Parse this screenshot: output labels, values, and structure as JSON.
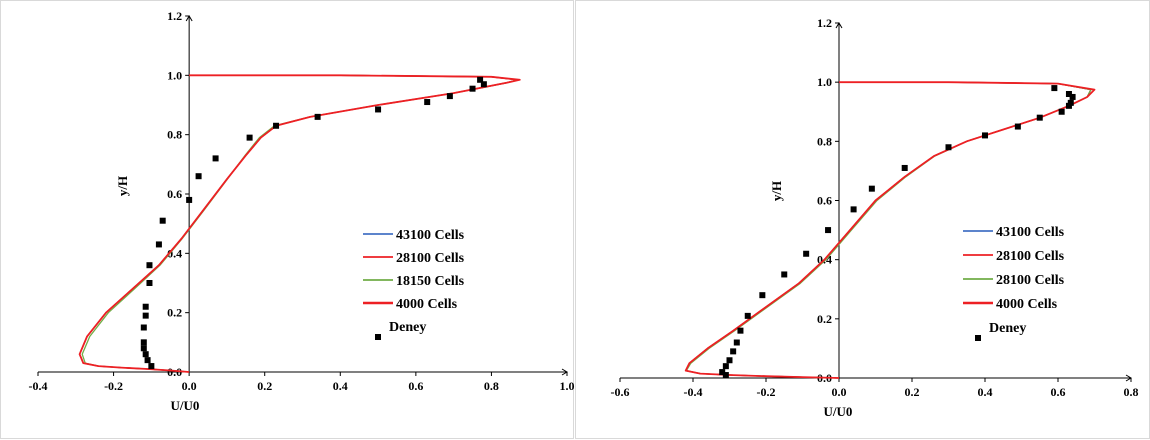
{
  "chart_data": [
    {
      "type": "line",
      "title": "",
      "xlabel": "U/U0",
      "ylabel": "y/H",
      "xlim": [
        -0.4,
        1.0
      ],
      "ylim": [
        0.0,
        1.2
      ],
      "xticks": [
        "-0.4",
        "-0.2",
        "0.0",
        "0.2",
        "0.4",
        "0.6",
        "0.8",
        "1.0"
      ],
      "yticks": [
        "0.0",
        "0.2",
        "0.4",
        "0.6",
        "0.8",
        "1.0",
        "1.2"
      ],
      "grid": false,
      "legend_position": "right",
      "series": [
        {
          "name": "43100 Cells",
          "color": "#4472c4",
          "style": "line",
          "x": [
            0.0,
            -0.05,
            -0.11,
            -0.18,
            -0.24,
            -0.28,
            -0.29,
            -0.27,
            -0.22,
            -0.15,
            -0.08,
            -0.02,
            0.04,
            0.1,
            0.15,
            0.19,
            0.23,
            0.32,
            0.5,
            0.7,
            0.84,
            0.87,
            0.8,
            0.4,
            0.0
          ],
          "y": [
            0.0,
            0.005,
            0.01,
            0.015,
            0.02,
            0.03,
            0.06,
            0.12,
            0.2,
            0.28,
            0.36,
            0.45,
            0.55,
            0.65,
            0.73,
            0.79,
            0.83,
            0.86,
            0.9,
            0.94,
            0.975,
            0.985,
            0.995,
            1.0,
            1.0
          ]
        },
        {
          "name": "28100 Cells",
          "color": "#ed2024",
          "style": "line",
          "x": [
            0.0,
            -0.05,
            -0.11,
            -0.18,
            -0.24,
            -0.28,
            -0.29,
            -0.27,
            -0.22,
            -0.15,
            -0.08,
            -0.02,
            0.04,
            0.1,
            0.15,
            0.19,
            0.23,
            0.32,
            0.5,
            0.7,
            0.84,
            0.87,
            0.8,
            0.4,
            0.0
          ],
          "y": [
            0.0,
            0.005,
            0.01,
            0.015,
            0.02,
            0.03,
            0.06,
            0.12,
            0.2,
            0.28,
            0.36,
            0.45,
            0.55,
            0.65,
            0.73,
            0.79,
            0.83,
            0.86,
            0.9,
            0.94,
            0.975,
            0.985,
            0.995,
            1.0,
            1.0
          ]
        },
        {
          "name": "18150 Cells",
          "color": "#70ad47",
          "style": "line",
          "x": [
            0.0,
            -0.05,
            -0.11,
            -0.18,
            -0.24,
            -0.275,
            -0.283,
            -0.263,
            -0.214,
            -0.145,
            -0.077,
            -0.018,
            0.042,
            0.101,
            0.148,
            0.186,
            0.226,
            0.32,
            0.5,
            0.7,
            0.84,
            0.87,
            0.8,
            0.4,
            0.0
          ],
          "y": [
            0.0,
            0.005,
            0.01,
            0.015,
            0.02,
            0.03,
            0.06,
            0.12,
            0.2,
            0.28,
            0.36,
            0.45,
            0.55,
            0.65,
            0.73,
            0.79,
            0.83,
            0.86,
            0.9,
            0.94,
            0.975,
            0.985,
            0.995,
            1.0,
            1.0
          ]
        },
        {
          "name": "4000 Cells",
          "color": "#ed2024",
          "style": "line",
          "x": [
            0.0,
            -0.05,
            -0.11,
            -0.18,
            -0.24,
            -0.28,
            -0.29,
            -0.27,
            -0.22,
            -0.15,
            -0.08,
            -0.02,
            0.04,
            0.1,
            0.15,
            0.19,
            0.23,
            0.32,
            0.5,
            0.7,
            0.84,
            0.875,
            0.8,
            0.4,
            0.0
          ],
          "y": [
            0.0,
            0.005,
            0.01,
            0.015,
            0.02,
            0.03,
            0.06,
            0.12,
            0.2,
            0.28,
            0.36,
            0.45,
            0.55,
            0.65,
            0.73,
            0.79,
            0.83,
            0.86,
            0.9,
            0.94,
            0.975,
            0.985,
            0.995,
            1.0,
            1.0
          ]
        },
        {
          "name": "Deney",
          "color": "#000000",
          "style": "marker",
          "x": [
            -0.1,
            -0.11,
            -0.115,
            -0.12,
            -0.12,
            -0.12,
            -0.115,
            -0.115,
            -0.105,
            -0.105,
            -0.08,
            -0.07,
            0.0,
            0.025,
            0.07,
            0.16,
            0.23,
            0.34,
            0.5,
            0.63,
            0.69,
            0.75,
            0.77,
            0.78
          ],
          "y": [
            0.02,
            0.04,
            0.06,
            0.08,
            0.1,
            0.15,
            0.19,
            0.22,
            0.3,
            0.36,
            0.43,
            0.51,
            0.58,
            0.66,
            0.72,
            0.79,
            0.83,
            0.86,
            0.885,
            0.91,
            0.93,
            0.955,
            0.985,
            0.97
          ]
        }
      ]
    },
    {
      "type": "line",
      "title": "",
      "xlabel": "U/U0",
      "ylabel": "y/H",
      "xlim": [
        -0.6,
        0.8
      ],
      "ylim": [
        0.0,
        1.2
      ],
      "xticks": [
        "-0.6",
        "-0.4",
        "-0.2",
        "0.0",
        "0.2",
        "0.4",
        "0.6",
        "0.8"
      ],
      "yticks": [
        "0.0",
        "0.2",
        "0.4",
        "0.6",
        "0.8",
        "1.0",
        "1.2"
      ],
      "grid": false,
      "legend_position": "right",
      "series": [
        {
          "name": "43100 Cells",
          "color": "#4472c4",
          "style": "line",
          "x": [
            0.0,
            -0.1,
            -0.2,
            -0.3,
            -0.38,
            -0.42,
            -0.41,
            -0.36,
            -0.29,
            -0.2,
            -0.11,
            -0.04,
            0.03,
            0.1,
            0.18,
            0.26,
            0.35,
            0.45,
            0.55,
            0.63,
            0.68,
            0.69,
            0.6,
            0.3,
            0.0
          ],
          "y": [
            0.0,
            0.003,
            0.006,
            0.01,
            0.015,
            0.025,
            0.05,
            0.1,
            0.16,
            0.24,
            0.32,
            0.4,
            0.5,
            0.6,
            0.68,
            0.75,
            0.8,
            0.84,
            0.88,
            0.92,
            0.95,
            0.975,
            0.995,
            1.0,
            1.0
          ]
        },
        {
          "name": "28100 Cells",
          "color": "#ed2024",
          "style": "line",
          "x": [
            0.0,
            -0.1,
            -0.2,
            -0.3,
            -0.38,
            -0.42,
            -0.41,
            -0.36,
            -0.29,
            -0.2,
            -0.11,
            -0.04,
            0.03,
            0.1,
            0.18,
            0.26,
            0.35,
            0.45,
            0.55,
            0.63,
            0.68,
            0.69,
            0.6,
            0.3,
            0.0
          ],
          "y": [
            0.0,
            0.003,
            0.006,
            0.01,
            0.015,
            0.025,
            0.05,
            0.1,
            0.16,
            0.24,
            0.32,
            0.4,
            0.5,
            0.6,
            0.68,
            0.75,
            0.8,
            0.84,
            0.88,
            0.92,
            0.95,
            0.975,
            0.995,
            1.0,
            1.0
          ]
        },
        {
          "name": "28100 Cells",
          "color": "#70ad47",
          "style": "line",
          "x": [
            0.0,
            -0.1,
            -0.2,
            -0.3,
            -0.38,
            -0.418,
            -0.406,
            -0.356,
            -0.286,
            -0.196,
            -0.106,
            -0.036,
            0.034,
            0.104,
            0.183,
            0.262,
            0.35,
            0.45,
            0.55,
            0.63,
            0.68,
            0.69,
            0.6,
            0.3,
            0.0
          ],
          "y": [
            0.0,
            0.003,
            0.006,
            0.01,
            0.015,
            0.025,
            0.05,
            0.1,
            0.16,
            0.24,
            0.32,
            0.4,
            0.5,
            0.6,
            0.68,
            0.75,
            0.8,
            0.84,
            0.88,
            0.92,
            0.95,
            0.975,
            0.995,
            1.0,
            1.0
          ]
        },
        {
          "name": "4000 Cells",
          "color": "#ed2024",
          "style": "line",
          "x": [
            0.0,
            -0.1,
            -0.2,
            -0.3,
            -0.38,
            -0.42,
            -0.41,
            -0.36,
            -0.29,
            -0.2,
            -0.11,
            -0.04,
            0.03,
            0.1,
            0.18,
            0.26,
            0.35,
            0.45,
            0.55,
            0.63,
            0.68,
            0.7,
            0.6,
            0.3,
            0.0
          ],
          "y": [
            0.0,
            0.003,
            0.006,
            0.01,
            0.015,
            0.025,
            0.05,
            0.1,
            0.16,
            0.24,
            0.32,
            0.4,
            0.5,
            0.6,
            0.68,
            0.75,
            0.8,
            0.84,
            0.88,
            0.92,
            0.95,
            0.975,
            0.995,
            1.0,
            1.0
          ]
        },
        {
          "name": "Deney",
          "color": "#000000",
          "style": "marker",
          "x": [
            -0.31,
            -0.32,
            -0.31,
            -0.3,
            -0.29,
            -0.28,
            -0.27,
            -0.25,
            -0.21,
            -0.15,
            -0.09,
            -0.03,
            0.04,
            0.09,
            0.18,
            0.3,
            0.4,
            0.49,
            0.55,
            0.59,
            0.61,
            0.63,
            0.64,
            0.635,
            0.63
          ],
          "y": [
            0.01,
            0.02,
            0.04,
            0.06,
            0.09,
            0.12,
            0.16,
            0.21,
            0.28,
            0.35,
            0.42,
            0.5,
            0.57,
            0.64,
            0.71,
            0.78,
            0.82,
            0.85,
            0.88,
            0.98,
            0.9,
            0.96,
            0.95,
            0.93,
            0.92
          ]
        }
      ]
    }
  ]
}
